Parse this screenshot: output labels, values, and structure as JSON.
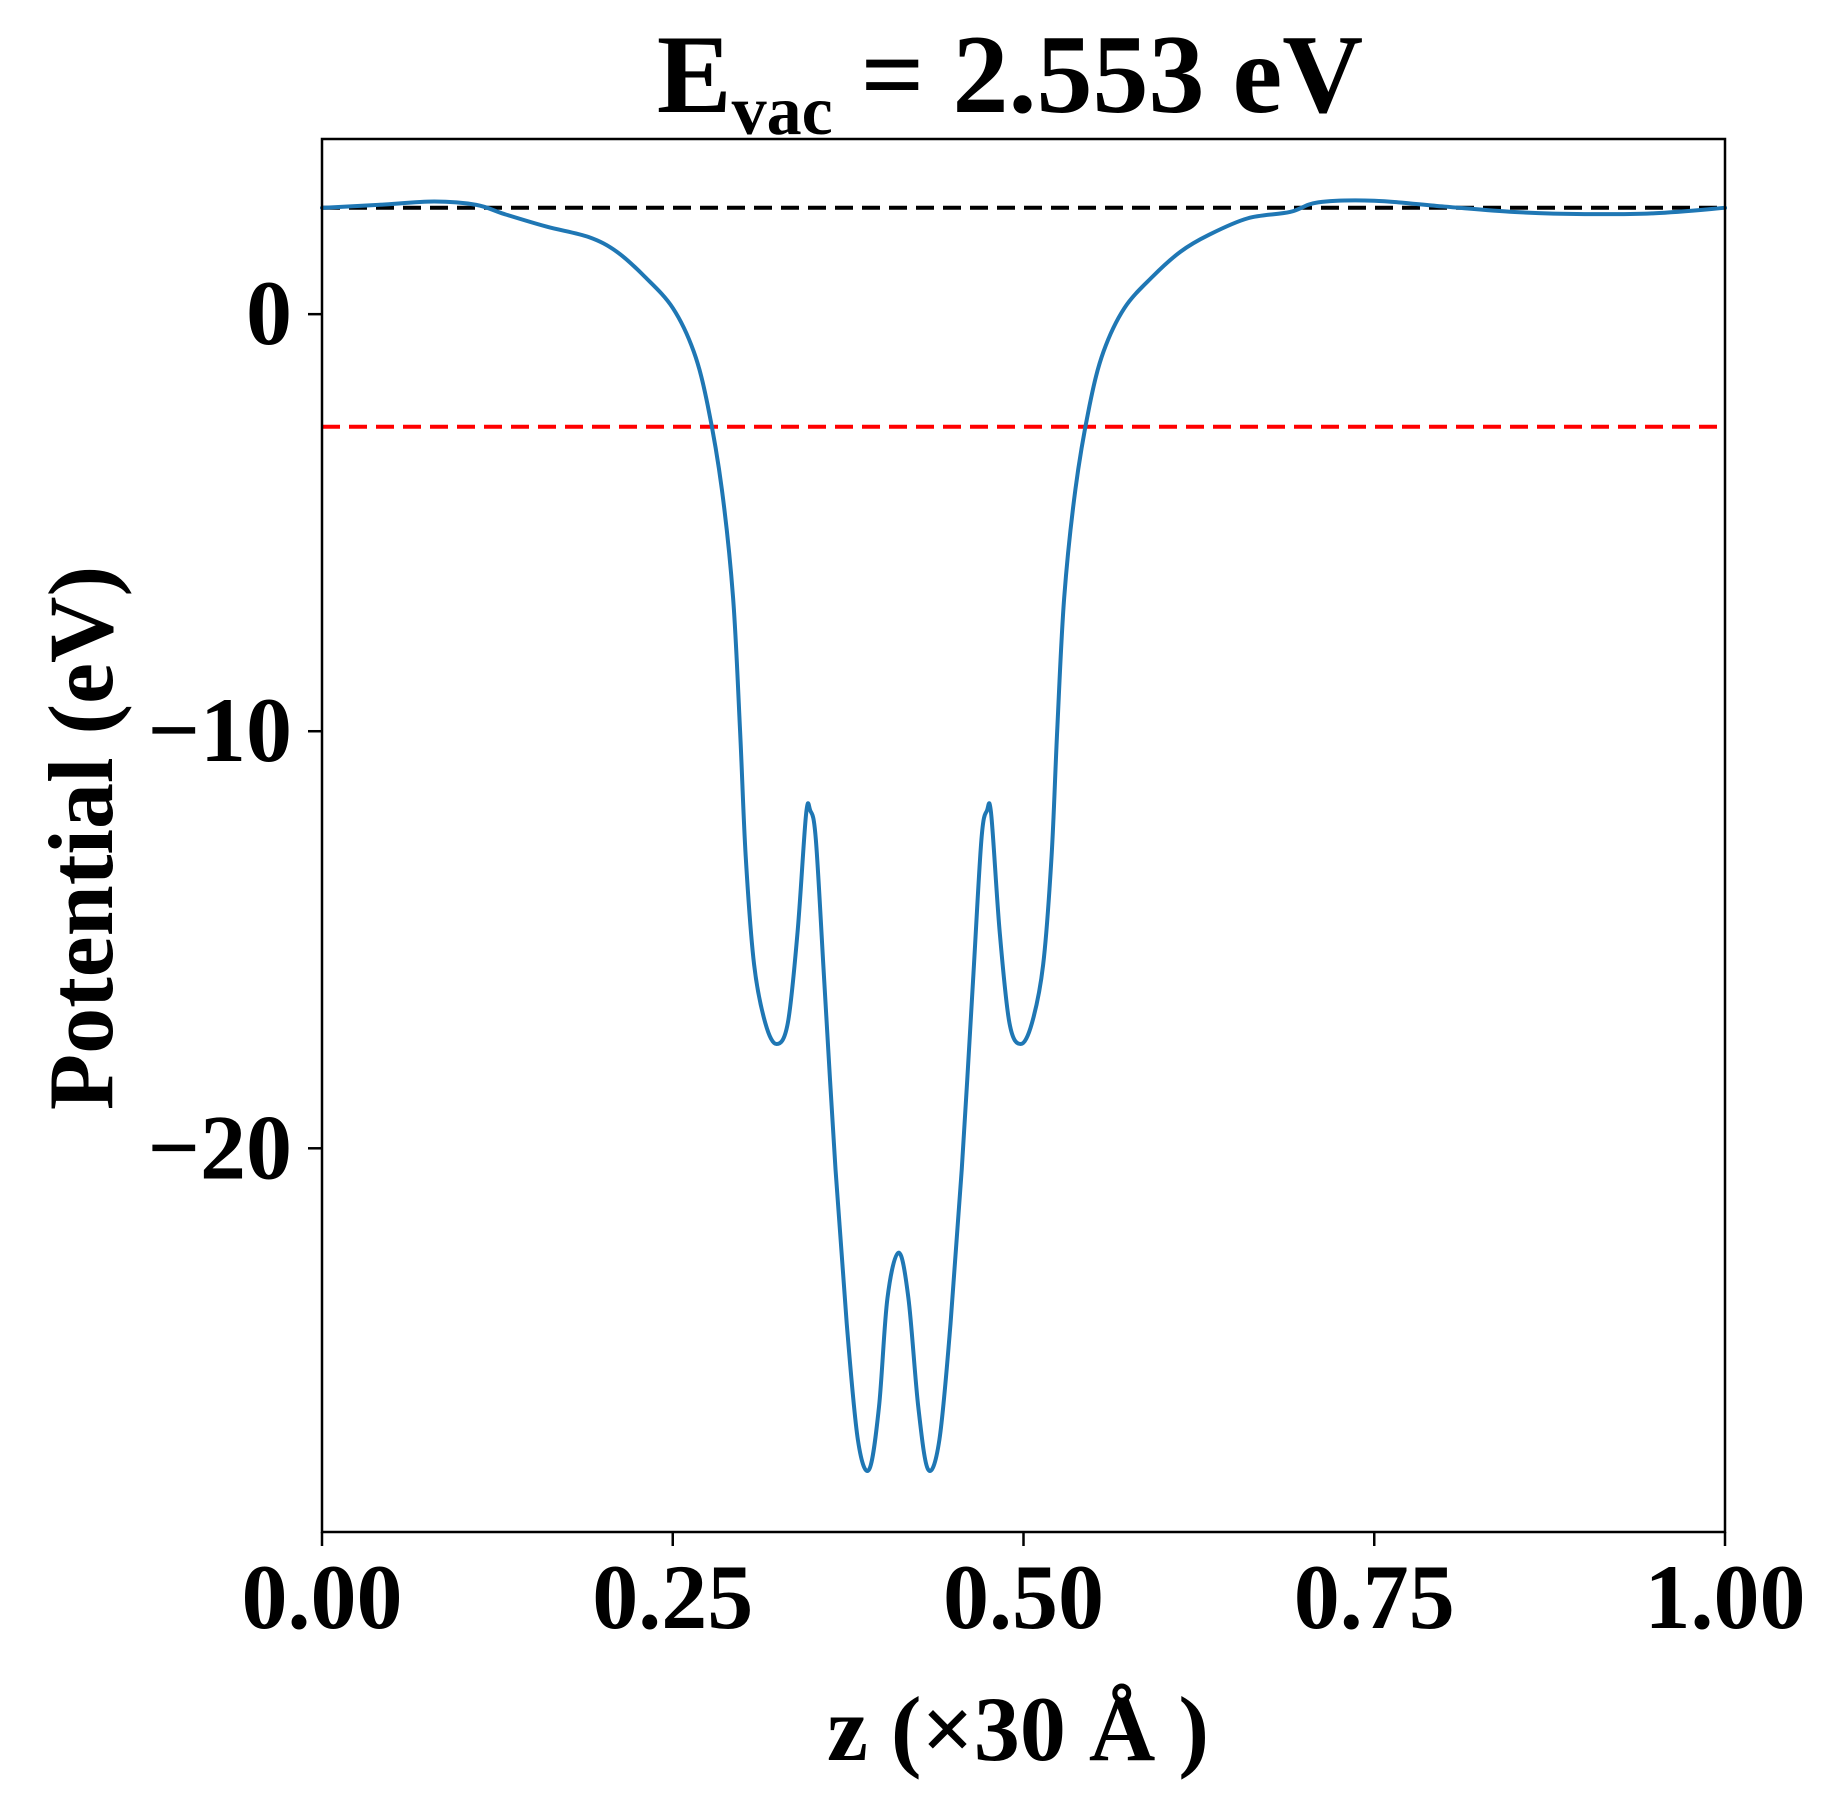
{
  "chart_data": {
    "type": "line",
    "title": {
      "symbol": "E",
      "subscript": "vac",
      "rest": " = 2.553 eV"
    },
    "xlabel": "z (×30 Å )",
    "ylabel": "Potential (eV)",
    "xlim": [
      0,
      1
    ],
    "ylim": [
      -29.2,
      4.2
    ],
    "x_ticks": [
      {
        "value": 0.0,
        "label": "0.00"
      },
      {
        "value": 0.25,
        "label": "0.25"
      },
      {
        "value": 0.5,
        "label": "0.50"
      },
      {
        "value": 0.75,
        "label": "0.75"
      },
      {
        "value": 1.0,
        "label": "1.00"
      }
    ],
    "y_ticks": [
      {
        "value": 0,
        "label": "0"
      },
      {
        "value": -10,
        "label": "−10"
      },
      {
        "value": -20,
        "label": "−20"
      }
    ],
    "grid": false,
    "reference_lines": [
      {
        "y": 2.553,
        "color": "#000000",
        "style": "dashed"
      },
      {
        "y": -2.7,
        "color": "#ff0000",
        "style": "dashed"
      }
    ],
    "series": [
      {
        "color": "#1f77b4",
        "points": [
          [
            0.0,
            2.55
          ],
          [
            0.04,
            2.62
          ],
          [
            0.08,
            2.7
          ],
          [
            0.11,
            2.62
          ],
          [
            0.13,
            2.4
          ],
          [
            0.16,
            2.1
          ],
          [
            0.19,
            1.85
          ],
          [
            0.21,
            1.5
          ],
          [
            0.23,
            0.9
          ],
          [
            0.25,
            0.15
          ],
          [
            0.265,
            -0.9
          ],
          [
            0.275,
            -2.2
          ],
          [
            0.285,
            -4.2
          ],
          [
            0.293,
            -6.8
          ],
          [
            0.298,
            -10.0
          ],
          [
            0.302,
            -13.0
          ],
          [
            0.308,
            -15.6
          ],
          [
            0.316,
            -17.0
          ],
          [
            0.324,
            -17.5
          ],
          [
            0.332,
            -17.0
          ],
          [
            0.339,
            -14.8
          ],
          [
            0.345,
            -12.0
          ],
          [
            0.348,
            -11.9
          ],
          [
            0.352,
            -12.6
          ],
          [
            0.358,
            -16.0
          ],
          [
            0.366,
            -20.5
          ],
          [
            0.374,
            -24.2
          ],
          [
            0.382,
            -27.0
          ],
          [
            0.39,
            -27.7
          ],
          [
            0.397,
            -26.2
          ],
          [
            0.403,
            -23.6
          ],
          [
            0.411,
            -22.5
          ],
          [
            0.418,
            -23.6
          ],
          [
            0.425,
            -26.2
          ],
          [
            0.432,
            -27.7
          ],
          [
            0.44,
            -27.0
          ],
          [
            0.448,
            -24.2
          ],
          [
            0.456,
            -20.5
          ],
          [
            0.464,
            -16.0
          ],
          [
            0.47,
            -12.6
          ],
          [
            0.474,
            -11.9
          ],
          [
            0.477,
            -12.0
          ],
          [
            0.483,
            -14.8
          ],
          [
            0.49,
            -17.0
          ],
          [
            0.498,
            -17.5
          ],
          [
            0.506,
            -17.0
          ],
          [
            0.514,
            -15.6
          ],
          [
            0.52,
            -13.0
          ],
          [
            0.524,
            -10.0
          ],
          [
            0.529,
            -6.8
          ],
          [
            0.537,
            -4.2
          ],
          [
            0.547,
            -2.2
          ],
          [
            0.557,
            -0.9
          ],
          [
            0.572,
            0.15
          ],
          [
            0.592,
            0.9
          ],
          [
            0.612,
            1.5
          ],
          [
            0.632,
            1.9
          ],
          [
            0.66,
            2.3
          ],
          [
            0.69,
            2.45
          ],
          [
            0.71,
            2.68
          ],
          [
            0.75,
            2.72
          ],
          [
            0.8,
            2.58
          ],
          [
            0.85,
            2.45
          ],
          [
            0.9,
            2.4
          ],
          [
            0.95,
            2.42
          ],
          [
            1.0,
            2.55
          ]
        ]
      }
    ]
  }
}
